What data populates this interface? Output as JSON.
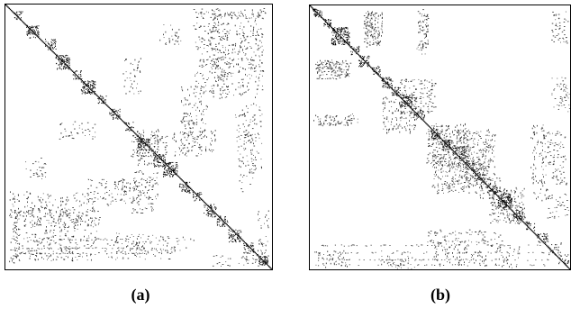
{
  "figures": [
    {
      "id": "a",
      "caption": "(a)"
    },
    {
      "id": "b",
      "caption": "(b)"
    }
  ]
}
